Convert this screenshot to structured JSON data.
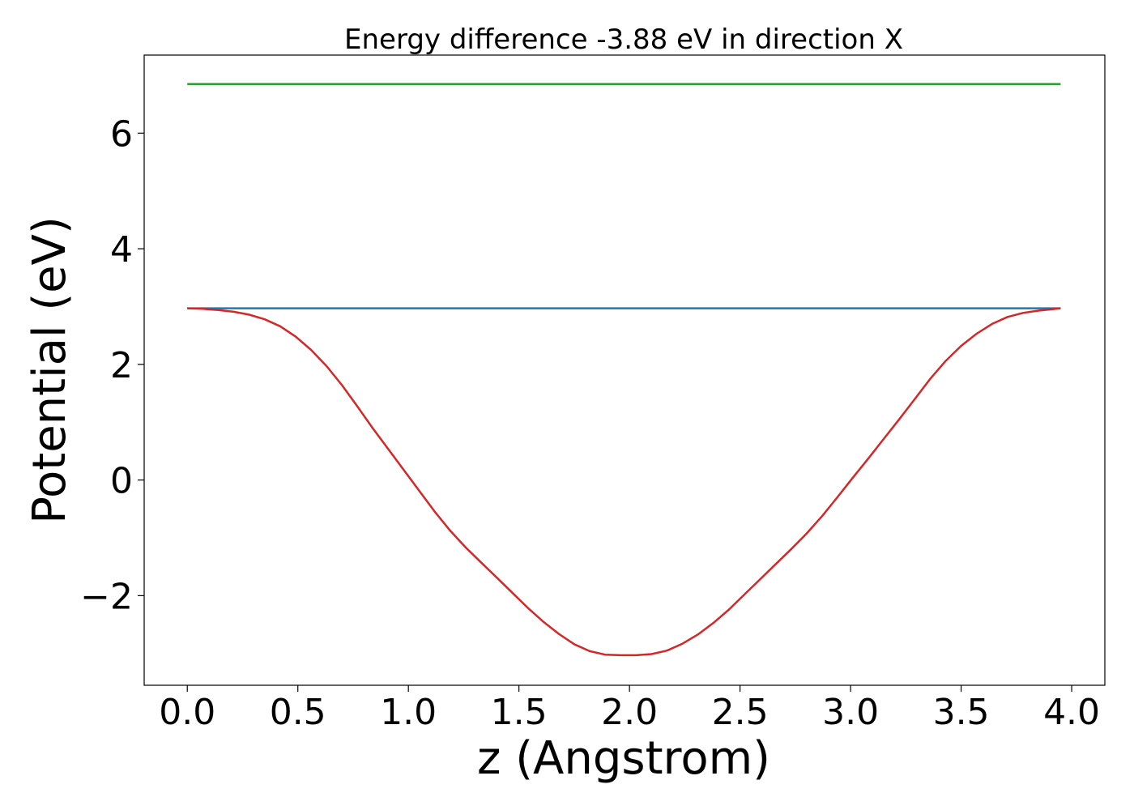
{
  "chart_data": {
    "type": "line",
    "title": "Energy difference -3.88 eV in direction X",
    "xlabel": "z (Angstrom)",
    "ylabel": "Potential (eV)",
    "xlim": [
      -0.195,
      4.15
    ],
    "ylim": [
      -3.55,
      7.35
    ],
    "xticks": [
      0.0,
      0.5,
      1.0,
      1.5,
      2.0,
      2.5,
      3.0,
      3.5,
      4.0
    ],
    "xtick_labels": [
      "0.0",
      "0.5",
      "1.0",
      "1.5",
      "2.0",
      "2.5",
      "3.0",
      "3.5",
      "4.0"
    ],
    "yticks": [
      -2,
      0,
      2,
      4,
      6
    ],
    "ytick_labels": [
      "−2",
      "0",
      "2",
      "4",
      "6"
    ],
    "grid": false,
    "series": [
      {
        "color": "#2ca02c",
        "x": [
          0.0,
          3.95
        ],
        "y": [
          6.85,
          6.85
        ]
      },
      {
        "color": "#1f77b4",
        "x": [
          0.0,
          3.95
        ],
        "y": [
          2.97,
          2.97
        ]
      },
      {
        "color": "#d62728",
        "x": [
          0.0,
          0.07,
          0.14,
          0.21,
          0.28,
          0.35,
          0.42,
          0.49,
          0.56,
          0.63,
          0.7,
          0.77,
          0.84,
          0.91,
          0.98,
          1.05,
          1.12,
          1.19,
          1.26,
          1.33,
          1.4,
          1.47,
          1.54,
          1.61,
          1.68,
          1.75,
          1.82,
          1.89,
          1.96,
          2.03,
          2.1,
          2.17,
          2.24,
          2.31,
          2.38,
          2.45,
          2.52,
          2.59,
          2.66,
          2.73,
          2.8,
          2.87,
          2.94,
          3.01,
          3.08,
          3.15,
          3.22,
          3.29,
          3.36,
          3.43,
          3.5,
          3.57,
          3.64,
          3.71,
          3.78,
          3.85,
          3.95
        ],
        "y": [
          2.97,
          2.96,
          2.94,
          2.91,
          2.86,
          2.78,
          2.66,
          2.48,
          2.25,
          1.97,
          1.64,
          1.27,
          0.89,
          0.53,
          0.17,
          -0.19,
          -0.55,
          -0.88,
          -1.17,
          -1.43,
          -1.69,
          -1.95,
          -2.21,
          -2.45,
          -2.66,
          -2.84,
          -2.96,
          -3.02,
          -3.03,
          -3.03,
          -3.01,
          -2.95,
          -2.83,
          -2.67,
          -2.47,
          -2.24,
          -1.98,
          -1.72,
          -1.46,
          -1.2,
          -0.93,
          -0.63,
          -0.3,
          0.04,
          0.37,
          0.71,
          1.05,
          1.4,
          1.75,
          2.06,
          2.32,
          2.53,
          2.7,
          2.82,
          2.89,
          2.93,
          2.97
        ]
      }
    ]
  }
}
